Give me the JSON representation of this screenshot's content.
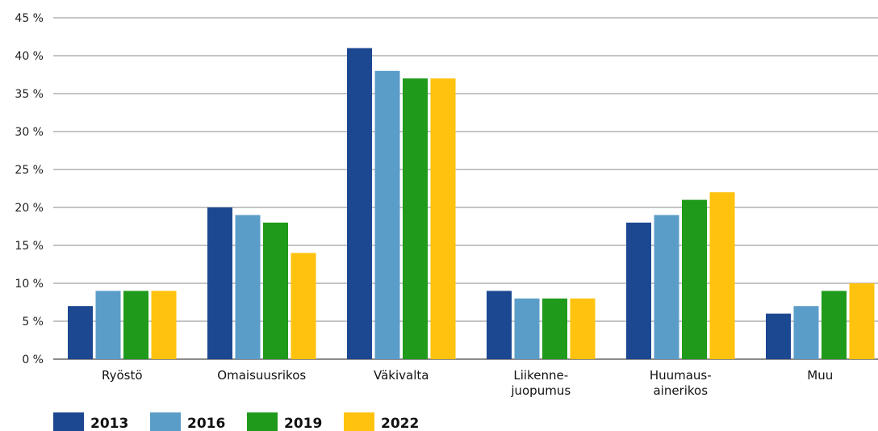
{
  "chart_data": {
    "type": "bar",
    "title": "",
    "xlabel": "",
    "ylabel": "",
    "ylim": [
      0,
      45
    ],
    "yticks": [
      0,
      5,
      10,
      15,
      20,
      25,
      30,
      35,
      40,
      45
    ],
    "ytick_labels": [
      "0 %",
      "5 %",
      "10 %",
      "15 %",
      "20 %",
      "25 %",
      "30 %",
      "35 %",
      "40 %",
      "45 %"
    ],
    "grid": true,
    "legend_position": "bottom-left",
    "categories": [
      [
        "Ryöstö"
      ],
      [
        "Omaisuusrikos"
      ],
      [
        "Väkivalta"
      ],
      [
        "Liikenne-",
        "juopumus"
      ],
      [
        "Huumaus-",
        "ainerikos"
      ],
      [
        "Muu"
      ]
    ],
    "series": [
      {
        "name": "2013",
        "color": "#1c4791",
        "values": [
          7,
          20,
          41,
          9,
          18,
          6
        ]
      },
      {
        "name": "2016",
        "color": "#5b9dc9",
        "values": [
          9,
          19,
          38,
          8,
          19,
          7
        ]
      },
      {
        "name": "2019",
        "color": "#1f9a1b",
        "values": [
          9,
          18,
          37,
          8,
          21,
          9
        ]
      },
      {
        "name": "2022",
        "color": "#ffc20e",
        "values": [
          9,
          14,
          37,
          8,
          22,
          10
        ]
      }
    ]
  }
}
